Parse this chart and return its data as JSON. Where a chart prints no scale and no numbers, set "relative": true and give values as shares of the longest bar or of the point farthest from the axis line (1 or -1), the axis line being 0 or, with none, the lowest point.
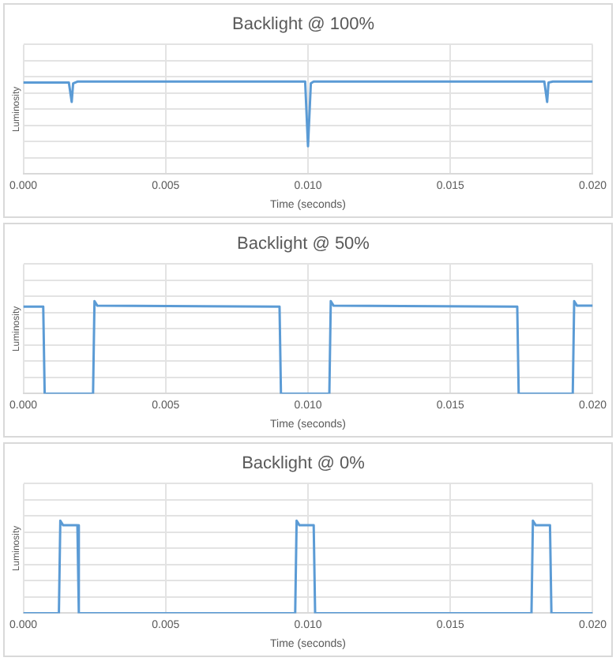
{
  "chart_data": [
    {
      "type": "line",
      "title": "Backlight @ 100%",
      "xlabel": "Time (seconds)",
      "ylabel": "Luminosity",
      "relative": true,
      "grid": true,
      "legend": false,
      "marker": "none",
      "line_style": "solid",
      "xlim": [
        0,
        0.02
      ],
      "xticks": [
        {
          "value": 0,
          "label": "0.000"
        },
        {
          "value": 0.005,
          "label": "0.005"
        },
        {
          "value": 0.01,
          "label": "0.010"
        },
        {
          "value": 0.015,
          "label": "0.015"
        },
        {
          "value": 0.02,
          "label": "0.020"
        }
      ],
      "series": [
        {
          "color": "#5b9bd5",
          "x": [
            0,
            0.0016,
            0.0017,
            0.00175,
            0.0019,
            0.0099,
            0.01,
            0.0101,
            0.0102,
            0.0183,
            0.0184,
            0.01845,
            0.0186,
            0.02
          ],
          "values": [
            0.99,
            0.99,
            0.78,
            0.98,
            1,
            1,
            0.3,
            0.98,
            1,
            1,
            0.78,
            0.99,
            1,
            1
          ]
        }
      ]
    },
    {
      "type": "line",
      "title": "Backlight @ 50%",
      "xlabel": "Time (seconds)",
      "ylabel": "Luminosity",
      "relative": true,
      "grid": true,
      "legend": false,
      "marker": "none",
      "line_style": "solid",
      "xlim": [
        0,
        0.02
      ],
      "xticks": [
        {
          "value": 0,
          "label": "0.000"
        },
        {
          "value": 0.005,
          "label": "0.005"
        },
        {
          "value": 0.01,
          "label": "0.010"
        },
        {
          "value": 0.015,
          "label": "0.015"
        },
        {
          "value": 0.02,
          "label": "0.020"
        }
      ],
      "series": [
        {
          "color": "#5b9bd5",
          "x": [
            0,
            0.0007,
            0.00075,
            0.00245,
            0.0025,
            0.0026,
            0.009,
            0.00905,
            0.01075,
            0.0108,
            0.0109,
            0.01735,
            0.0174,
            0.0193,
            0.01935,
            0.01945,
            0.02
          ],
          "values": [
            0.94,
            0.94,
            0,
            0,
            1,
            0.95,
            0.94,
            0,
            0,
            1,
            0.95,
            0.94,
            0,
            0,
            1,
            0.95,
            0.95
          ]
        }
      ]
    },
    {
      "type": "line",
      "title": "Backlight @ 0%",
      "xlabel": "Time (seconds)",
      "ylabel": "Luminosity",
      "relative": true,
      "grid": true,
      "legend": false,
      "marker": "none",
      "line_style": "solid",
      "xlim": [
        0,
        0.02
      ],
      "xticks": [
        {
          "value": 0,
          "label": "0.000"
        },
        {
          "value": 0.005,
          "label": "0.005"
        },
        {
          "value": 0.01,
          "label": "0.010"
        },
        {
          "value": 0.015,
          "label": "0.015"
        },
        {
          "value": 0.02,
          "label": "0.020"
        }
      ],
      "series": [
        {
          "color": "#5b9bd5",
          "x": [
            0,
            0.00125,
            0.0013,
            0.0014,
            0.0019,
            0.00195,
            0.00955,
            0.0096,
            0.0097,
            0.0102,
            0.01025,
            0.01785,
            0.0179,
            0.018,
            0.0185,
            0.01855,
            0.02
          ],
          "values": [
            0,
            0,
            1,
            0.95,
            0.95,
            0,
            0,
            1,
            0.95,
            0.95,
            0,
            0,
            1,
            0.95,
            0.95,
            0,
            0
          ]
        }
      ]
    }
  ]
}
